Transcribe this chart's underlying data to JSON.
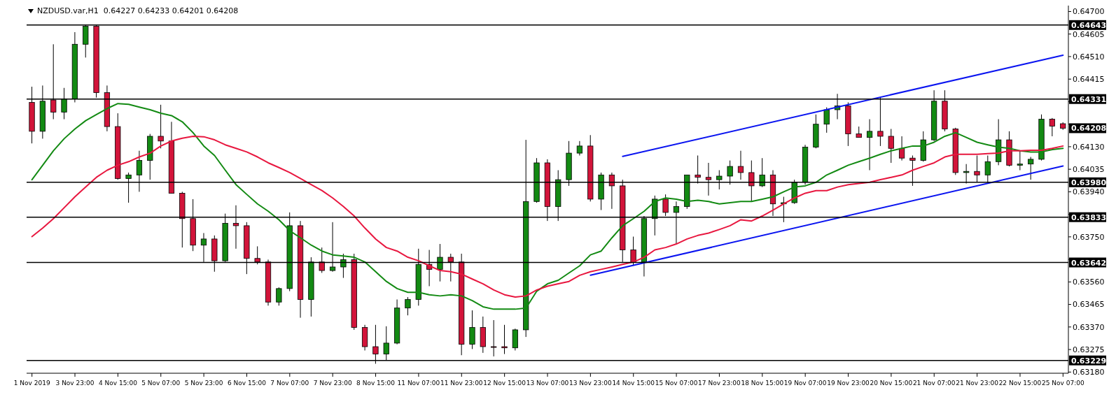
{
  "chart_data": {
    "type": "candlestick",
    "title": "NZDUSD.var,H1  0.64227 0.64233 0.64201 0.64208",
    "categories": [
      "1 Nov 2019",
      null,
      null,
      null,
      "3 Nov 23:00",
      null,
      null,
      null,
      "4 Nov 15:00",
      null,
      null,
      null,
      "5 Nov 07:00",
      null,
      null,
      null,
      "5 Nov 23:00",
      null,
      null,
      null,
      "6 Nov 15:00",
      null,
      null,
      null,
      "7 Nov 07:00",
      null,
      null,
      null,
      "7 Nov 23:00",
      null,
      null,
      null,
      "8 Nov 15:00",
      null,
      null,
      null,
      "11 Nov 07:00",
      null,
      null,
      null,
      "11 Nov 23:00",
      null,
      null,
      null,
      "12 Nov 15:00",
      null,
      null,
      null,
      "13 Nov 07:00",
      null,
      null,
      null,
      "13 Nov 23:00",
      null,
      null,
      null,
      "14 Nov 15:00",
      null,
      null,
      null,
      "15 Nov 07:00",
      null,
      null,
      null,
      "17 Nov 23:00",
      null,
      null,
      null,
      "18 Nov 15:00",
      null,
      null,
      null,
      "19 Nov 07:00",
      null,
      null,
      null,
      "19 Nov 23:00",
      null,
      null,
      null,
      "20 Nov 15:00",
      null,
      null,
      null,
      "21 Nov 07:00",
      null,
      null,
      null,
      "21 Nov 23:00",
      null,
      null,
      null,
      "22 Nov 15:00",
      null,
      null,
      null,
      "25 Nov 07:00"
    ],
    "ohlc": [
      [
        0.64317,
        0.64383,
        0.64144,
        0.64195
      ],
      [
        0.64195,
        0.64388,
        0.64164,
        0.64322
      ],
      [
        0.64327,
        0.64562,
        0.64246,
        0.64276
      ],
      [
        0.64276,
        0.64378,
        0.64246,
        0.64332
      ],
      [
        0.64332,
        0.64613,
        0.64317,
        0.64562
      ],
      [
        0.64562,
        0.64643,
        0.64506,
        0.64638
      ],
      [
        0.64638,
        0.64643,
        0.64337,
        0.64358
      ],
      [
        0.64358,
        0.64388,
        0.64195,
        0.64215
      ],
      [
        0.64215,
        0.64271,
        0.63991,
        0.63996
      ],
      [
        0.63996,
        0.64021,
        0.63894,
        0.64011
      ],
      [
        0.64011,
        0.64113,
        0.6394,
        0.64072
      ],
      [
        0.64072,
        0.64184,
        0.63991,
        0.64174
      ],
      [
        0.64174,
        0.64307,
        0.64123,
        0.64154
      ],
      [
        0.64154,
        0.64235,
        0.63934,
        0.63934
      ],
      [
        0.63934,
        0.6394,
        0.63705,
        0.63827
      ],
      [
        0.63827,
        0.63909,
        0.6369,
        0.63715
      ],
      [
        0.63715,
        0.63766,
        0.63644,
        0.63741
      ],
      [
        0.63741,
        0.63756,
        0.63603,
        0.63649
      ],
      [
        0.63649,
        0.63848,
        0.63644,
        0.63807
      ],
      [
        0.63807,
        0.63883,
        0.637,
        0.63797
      ],
      [
        0.63797,
        0.63812,
        0.63593,
        0.63659
      ],
      [
        0.63659,
        0.6371,
        0.63634,
        0.63644
      ],
      [
        0.63644,
        0.63654,
        0.6346,
        0.63475
      ],
      [
        0.63475,
        0.63537,
        0.6346,
        0.63532
      ],
      [
        0.63532,
        0.63853,
        0.63521,
        0.63797
      ],
      [
        0.63797,
        0.63817,
        0.63409,
        0.63486
      ],
      [
        0.63486,
        0.63664,
        0.63414,
        0.63644
      ],
      [
        0.63644,
        0.63705,
        0.63598,
        0.63608
      ],
      [
        0.63608,
        0.63812,
        0.63603,
        0.63623
      ],
      [
        0.63623,
        0.63679,
        0.63577,
        0.63654
      ],
      [
        0.63654,
        0.63679,
        0.63358,
        0.63368
      ],
      [
        0.63368,
        0.63379,
        0.63271,
        0.63287
      ],
      [
        0.63287,
        0.63379,
        0.63215,
        0.63256
      ],
      [
        0.63256,
        0.63373,
        0.63231,
        0.63302
      ],
      [
        0.63302,
        0.63486,
        0.63297,
        0.6345
      ],
      [
        0.6345,
        0.63496,
        0.63419,
        0.63486
      ],
      [
        0.63486,
        0.637,
        0.6346,
        0.63634
      ],
      [
        0.63634,
        0.63695,
        0.63542,
        0.63613
      ],
      [
        0.63613,
        0.6372,
        0.63562,
        0.63664
      ],
      [
        0.63664,
        0.63679,
        0.63562,
        0.63644
      ],
      [
        0.63644,
        0.63679,
        0.63251,
        0.63297
      ],
      [
        0.63297,
        0.6344,
        0.63277,
        0.63368
      ],
      [
        0.63368,
        0.63414,
        0.63261,
        0.63287
      ],
      [
        0.63287,
        0.63399,
        0.63246,
        0.63284
      ],
      [
        0.63287,
        0.63379,
        0.63256,
        0.63282
      ],
      [
        0.63282,
        0.63363,
        0.63271,
        0.63358
      ],
      [
        0.63358,
        0.64159,
        0.63328,
        0.63899
      ],
      [
        0.63899,
        0.64082,
        0.63894,
        0.64062
      ],
      [
        0.64062,
        0.64077,
        0.63817,
        0.63878
      ],
      [
        0.63878,
        0.64031,
        0.63817,
        0.63991
      ],
      [
        0.63991,
        0.64154,
        0.63965,
        0.64103
      ],
      [
        0.64103,
        0.64154,
        0.64093,
        0.64133
      ],
      [
        0.64133,
        0.64179,
        0.63899,
        0.63909
      ],
      [
        0.63909,
        0.64021,
        0.63863,
        0.64011
      ],
      [
        0.64011,
        0.64021,
        0.63868,
        0.63965
      ],
      [
        0.63965,
        0.63991,
        0.63644,
        0.63695
      ],
      [
        0.63695,
        0.63751,
        0.63628,
        0.63644
      ],
      [
        0.63644,
        0.63838,
        0.63583,
        0.63827
      ],
      [
        0.63827,
        0.63924,
        0.63756,
        0.63909
      ],
      [
        0.63909,
        0.63929,
        0.63838,
        0.63853
      ],
      [
        0.63853,
        0.63899,
        0.6372,
        0.63878
      ],
      [
        0.63878,
        0.64011,
        0.63868,
        0.64011
      ],
      [
        0.64011,
        0.64093,
        0.63975,
        0.64001
      ],
      [
        0.64001,
        0.64062,
        0.63924,
        0.63991
      ],
      [
        0.63991,
        0.64031,
        0.6395,
        0.64006
      ],
      [
        0.64006,
        0.64072,
        0.6397,
        0.64047
      ],
      [
        0.64047,
        0.64113,
        0.63991,
        0.64021
      ],
      [
        0.64021,
        0.64072,
        0.63899,
        0.63965
      ],
      [
        0.63965,
        0.64082,
        0.6396,
        0.64011
      ],
      [
        0.64011,
        0.64031,
        0.63838,
        0.63889
      ],
      [
        0.63889,
        0.63919,
        0.63812,
        0.63894
      ],
      [
        0.63894,
        0.63991,
        0.63889,
        0.6398
      ],
      [
        0.6398,
        0.64138,
        0.6397,
        0.64128
      ],
      [
        0.64128,
        0.64266,
        0.64123,
        0.64225
      ],
      [
        0.64225,
        0.64296,
        0.64189,
        0.64286
      ],
      [
        0.64286,
        0.64353,
        0.64246,
        0.64302
      ],
      [
        0.64302,
        0.64317,
        0.64133,
        0.64184
      ],
      [
        0.64184,
        0.64215,
        0.64169,
        0.64169
      ],
      [
        0.64169,
        0.64246,
        0.64031,
        0.64195
      ],
      [
        0.64195,
        0.64337,
        0.64133,
        0.64174
      ],
      [
        0.64174,
        0.64205,
        0.64062,
        0.64123
      ],
      [
        0.64123,
        0.64174,
        0.64072,
        0.64082
      ],
      [
        0.64082,
        0.64093,
        0.63965,
        0.64072
      ],
      [
        0.64072,
        0.64195,
        0.64067,
        0.64159
      ],
      [
        0.64159,
        0.64368,
        0.64154,
        0.64322
      ],
      [
        0.64322,
        0.64368,
        0.64195,
        0.64205
      ],
      [
        0.64205,
        0.6421,
        0.64011,
        0.64021
      ],
      [
        0.64021,
        0.64057,
        0.63975,
        0.64026
      ],
      [
        0.64026,
        0.64093,
        0.6398,
        0.64011
      ],
      [
        0.64011,
        0.64093,
        0.63975,
        0.64067
      ],
      [
        0.64067,
        0.64246,
        0.64052,
        0.64159
      ],
      [
        0.64159,
        0.64195,
        0.64047,
        0.64052
      ],
      [
        0.64052,
        0.64113,
        0.64031,
        0.64057
      ],
      [
        0.64057,
        0.64087,
        0.63991,
        0.64077
      ],
      [
        0.64077,
        0.64266,
        0.64072,
        0.64246
      ],
      [
        0.64246,
        0.64251,
        0.64174,
        0.64217
      ],
      [
        0.64227,
        0.64233,
        0.64201,
        0.64208
      ]
    ],
    "colors": [
      "#d2143a",
      "#138a13",
      "#d2143a",
      "#138a13",
      "#138a13",
      "#138a13",
      "#d2143a",
      "#d2143a",
      "#d2143a",
      "#138a13",
      "#138a13",
      "#138a13",
      "#d2143a",
      "#d2143a",
      "#d2143a",
      "#d2143a",
      "#138a13",
      "#d2143a",
      "#138a13",
      "#d2143a",
      "#d2143a",
      "#d2143a",
      "#d2143a",
      "#138a13",
      "#138a13",
      "#d2143a",
      "#138a13",
      "#d2143a",
      "#138a13",
      "#138a13",
      "#d2143a",
      "#d2143a",
      "#d2143a",
      "#138a13",
      "#138a13",
      "#138a13",
      "#138a13",
      "#d2143a",
      "#138a13",
      "#d2143a",
      "#d2143a",
      "#138a13",
      "#d2143a",
      "#d2143a",
      "#d2143a",
      "#138a13",
      "#138a13",
      "#138a13",
      "#d2143a",
      "#138a13",
      "#138a13",
      "#138a13",
      "#d2143a",
      "#138a13",
      "#d2143a",
      "#d2143a",
      "#d2143a",
      "#138a13",
      "#138a13",
      "#d2143a",
      "#138a13",
      "#138a13",
      "#d2143a",
      "#d2143a",
      "#138a13",
      "#138a13",
      "#d2143a",
      "#d2143a",
      "#138a13",
      "#d2143a",
      "#138a13",
      "#138a13",
      "#138a13",
      "#138a13",
      "#138a13",
      "#138a13",
      "#d2143a",
      "#d2143a",
      "#138a13",
      "#d2143a",
      "#d2143a",
      "#d2143a",
      "#d2143a",
      "#138a13",
      "#138a13",
      "#d2143a",
      "#d2143a",
      "#138a13",
      "#d2143a",
      "#138a13",
      "#138a13",
      "#d2143a",
      "#138a13",
      "#138a13",
      "#138a13",
      "#d2143a",
      "#d2143a"
    ],
    "series": [
      {
        "type": "line",
        "color": "#138a13",
        "values": [
          0.63991,
          0.64052,
          0.64113,
          0.64164,
          0.64205,
          0.6424,
          0.64266,
          0.64291,
          0.64312,
          0.64309,
          0.64297,
          0.64286,
          0.64271,
          0.64261,
          0.64235,
          0.64189,
          0.64133,
          0.64093,
          0.64031,
          0.6397,
          0.63929,
          0.63889,
          0.63858,
          0.63822,
          0.63776,
          0.63746,
          0.63715,
          0.6369,
          0.63674,
          0.63669,
          0.63664,
          0.63644,
          0.63603,
          0.63562,
          0.63532,
          0.63516,
          0.63516,
          0.63506,
          0.63501,
          0.63506,
          0.63501,
          0.63481,
          0.63455,
          0.63445,
          0.63445,
          0.63445,
          0.6345,
          0.63521,
          0.63552,
          0.63567,
          0.63598,
          0.63628,
          0.63674,
          0.6369,
          0.63746,
          0.63797,
          0.63827,
          0.63858,
          0.63899,
          0.63914,
          0.63909,
          0.63899,
          0.63904,
          0.63899,
          0.63889,
          0.63894,
          0.63899,
          0.63899,
          0.63909,
          0.63919,
          0.6394,
          0.6396,
          0.63965,
          0.6398,
          0.64011,
          0.64031,
          0.64052,
          0.64067,
          0.64082,
          0.64098,
          0.64113,
          0.64123,
          0.64133,
          0.64133,
          0.64149,
          0.64174,
          0.64189,
          0.64169,
          0.64149,
          0.64138,
          0.64128,
          0.64123,
          0.64113,
          0.64108,
          0.64108,
          0.64118,
          0.64123
        ]
      },
      {
        "type": "line",
        "color": "#e8173f",
        "values": [
          0.63751,
          0.63787,
          0.63827,
          0.63873,
          0.63919,
          0.6396,
          0.64001,
          0.64031,
          0.64052,
          0.64067,
          0.64087,
          0.64103,
          0.64133,
          0.64154,
          0.64166,
          0.64174,
          0.64172,
          0.64159,
          0.64138,
          0.64123,
          0.64108,
          0.64087,
          0.64062,
          0.64042,
          0.64021,
          0.63996,
          0.6397,
          0.63945,
          0.63914,
          0.63878,
          0.63838,
          0.63787,
          0.63741,
          0.63705,
          0.6369,
          0.63664,
          0.63649,
          0.63628,
          0.63608,
          0.63603,
          0.63593,
          0.63572,
          0.63552,
          0.63526,
          0.63506,
          0.63496,
          0.63501,
          0.63526,
          0.63542,
          0.63552,
          0.63562,
          0.63588,
          0.63603,
          0.63613,
          0.63623,
          0.63634,
          0.63644,
          0.63664,
          0.63695,
          0.63705,
          0.6372,
          0.63741,
          0.63756,
          0.63766,
          0.63781,
          0.63797,
          0.63822,
          0.63817,
          0.63838,
          0.63863,
          0.63889,
          0.63914,
          0.63934,
          0.63945,
          0.63945,
          0.6396,
          0.6397,
          0.63975,
          0.6398,
          0.63991,
          0.64001,
          0.64011,
          0.64031,
          0.64047,
          0.64062,
          0.64087,
          0.64098,
          0.64098,
          0.64098,
          0.64101,
          0.64103,
          0.64113,
          0.64113,
          0.64115,
          0.64115,
          0.64123,
          0.64133
        ]
      },
      {
        "type": "line",
        "color": "#0a14f0",
        "values": [
          null,
          null,
          null,
          null,
          null,
          null,
          null,
          null,
          null,
          null,
          null,
          null,
          null,
          null,
          null,
          null,
          null,
          null,
          null,
          null,
          null,
          null,
          null,
          null,
          null,
          null,
          null,
          null,
          null,
          null,
          null,
          null,
          null,
          null,
          null,
          null,
          null,
          null,
          null,
          null,
          null,
          null,
          null,
          null,
          null,
          null,
          null,
          null,
          null,
          null,
          null,
          null,
          null,
          null,
          null,
          0.64089,
          null,
          null,
          null,
          null,
          null,
          null,
          null,
          null,
          null,
          null,
          null,
          null,
          null,
          null,
          null,
          null,
          null,
          null,
          null,
          null,
          null,
          null,
          null,
          null,
          null,
          null,
          null,
          null,
          null,
          null,
          null,
          null,
          null,
          null,
          null,
          null,
          null,
          null,
          null,
          null,
          0.64516
        ]
      },
      {
        "type": "line",
        "color": "#0a14f0",
        "values": [
          null,
          null,
          null,
          null,
          null,
          null,
          null,
          null,
          null,
          null,
          null,
          null,
          null,
          null,
          null,
          null,
          null,
          null,
          null,
          null,
          null,
          null,
          null,
          null,
          null,
          null,
          null,
          null,
          null,
          null,
          null,
          null,
          null,
          null,
          null,
          null,
          null,
          null,
          null,
          null,
          null,
          null,
          null,
          null,
          null,
          null,
          null,
          null,
          null,
          null,
          null,
          null,
          0.63588,
          null,
          null,
          null,
          null,
          null,
          null,
          null,
          null,
          null,
          null,
          null,
          null,
          null,
          null,
          null,
          null,
          null,
          null,
          null,
          null,
          null,
          null,
          null,
          null,
          null,
          null,
          null,
          null,
          null,
          null,
          null,
          null,
          null,
          null,
          null,
          null,
          null,
          null,
          null,
          null,
          null,
          null,
          null,
          0.64049
        ]
      }
    ],
    "ylim": [
      0.63175,
      0.64725
    ],
    "yticks": [
      {
        "value": 0.6318,
        "label": "0.63180"
      },
      {
        "value": 0.63275,
        "label": "0.63275"
      },
      {
        "value": 0.6337,
        "label": "0.63370"
      },
      {
        "value": 0.63465,
        "label": "0.63465"
      },
      {
        "value": 0.6356,
        "label": "0.63560"
      },
      {
        "value": 0.63655,
        "label": null
      },
      {
        "value": 0.6375,
        "label": "0.63750"
      },
      {
        "value": 0.63845,
        "label": null
      },
      {
        "value": 0.6394,
        "label": "0.63940"
      },
      {
        "value": 0.64035,
        "label": "0.64035"
      },
      {
        "value": 0.6413,
        "label": "0.64130"
      },
      {
        "value": 0.64225,
        "label": null
      },
      {
        "value": 0.6432,
        "label": null
      },
      {
        "value": 0.64415,
        "label": "0.64415"
      },
      {
        "value": 0.6451,
        "label": "0.64510"
      },
      {
        "value": 0.64605,
        "label": "0.64605"
      },
      {
        "value": 0.647,
        "label": "0.64700"
      }
    ],
    "ref_lines": [
      {
        "axis": "y",
        "value": 0.64643,
        "label": "0.64643",
        "color": "#000000"
      },
      {
        "axis": "y",
        "value": 0.64331,
        "label": "0.64331",
        "color": "#000000"
      },
      {
        "axis": "y",
        "value": 0.6398,
        "label": "0.63980",
        "color": "#000000"
      },
      {
        "axis": "y",
        "value": 0.63833,
        "label": "0.63833",
        "color": "#000000"
      },
      {
        "axis": "y",
        "value": 0.63642,
        "label": "0.63642",
        "color": "#000000"
      },
      {
        "axis": "y",
        "value": 0.63229,
        "label": "0.63229",
        "color": "#000000"
      }
    ],
    "annotations": [
      "0.64208"
    ]
  }
}
